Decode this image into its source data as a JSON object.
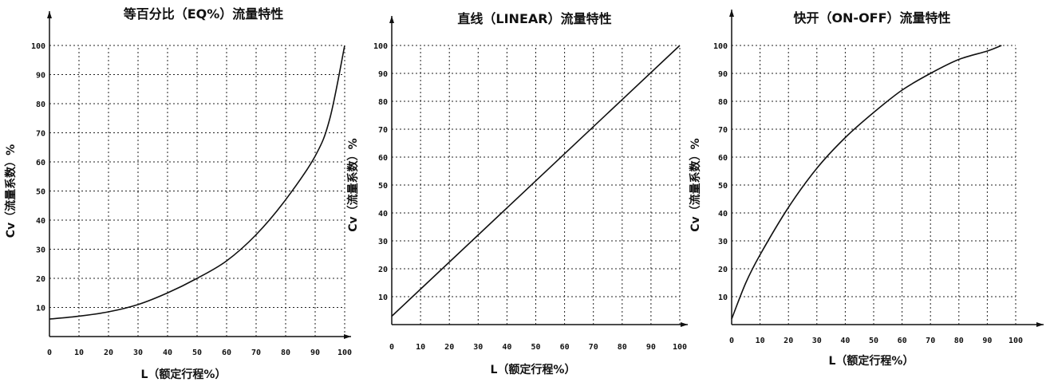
{
  "chart_data": [
    {
      "type": "line",
      "title": "等百分比（EQ%）流量特性",
      "xlabel": "L（额定行程%）",
      "ylabel": "Cv（流量系数）%",
      "x_ticks": [
        "0",
        "10",
        "20",
        "30",
        "40",
        "50",
        "60",
        "70",
        "80",
        "90",
        "100"
      ],
      "y_ticks": [
        "10",
        "20",
        "30",
        "40",
        "50",
        "60",
        "70",
        "80",
        "90",
        "100"
      ],
      "xlim": [
        0,
        100
      ],
      "ylim": [
        0,
        100
      ],
      "grid": true,
      "series": [
        {
          "x": [
            0,
            10,
            20,
            30,
            40,
            50,
            60,
            70,
            80,
            90,
            95,
            100
          ],
          "y": [
            6,
            7,
            8.5,
            11,
            15,
            20,
            26,
            35,
            47,
            62,
            75,
            100
          ]
        }
      ]
    },
    {
      "type": "line",
      "title": "直线（LINEAR）流量特性",
      "xlabel": "L（额定行程%）",
      "ylabel": "Cv（流量系数）%",
      "x_ticks": [
        "0",
        "10",
        "20",
        "30",
        "40",
        "50",
        "60",
        "70",
        "80",
        "90",
        "100"
      ],
      "y_ticks": [
        "10",
        "20",
        "30",
        "40",
        "50",
        "60",
        "70",
        "80",
        "90",
        "100"
      ],
      "xlim": [
        0,
        100
      ],
      "ylim": [
        0,
        100
      ],
      "grid": true,
      "series": [
        {
          "x": [
            0,
            100
          ],
          "y": [
            3,
            100
          ]
        }
      ]
    },
    {
      "type": "line",
      "title": "快开（ON-OFF）流量特性",
      "xlabel": "L（额定行程%）",
      "ylabel": "Cv（流量系数）%",
      "x_ticks": [
        "0",
        "10",
        "20",
        "30",
        "40",
        "50",
        "60",
        "70",
        "80",
        "90",
        "100"
      ],
      "y_ticks": [
        "10",
        "20",
        "30",
        "40",
        "50",
        "60",
        "70",
        "80",
        "90",
        "100"
      ],
      "xlim": [
        0,
        100
      ],
      "ylim": [
        0,
        100
      ],
      "grid": true,
      "series": [
        {
          "x": [
            0,
            5,
            10,
            20,
            30,
            40,
            50,
            60,
            70,
            80,
            90,
            95
          ],
          "y": [
            2,
            15,
            25,
            42,
            56,
            67,
            76,
            84,
            90,
            95,
            98,
            100
          ]
        }
      ]
    }
  ]
}
